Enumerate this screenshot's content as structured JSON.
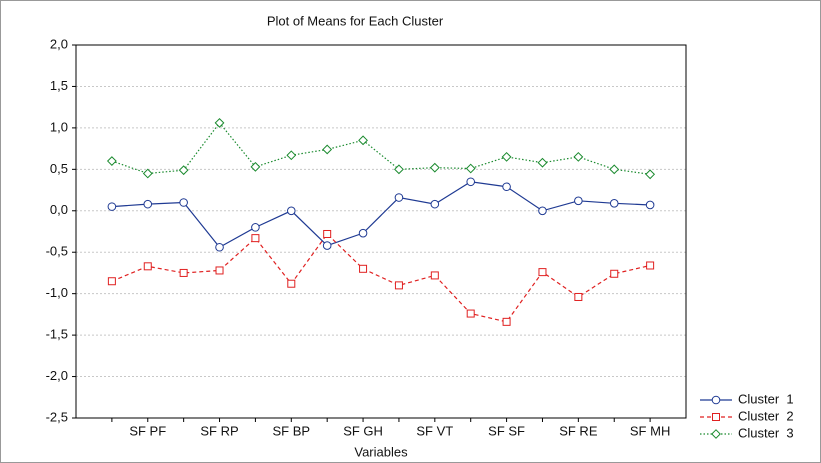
{
  "chart_data": {
    "type": "line",
    "title": "Plot of Means for Each Cluster",
    "x_label": "Variables",
    "categories": [
      null,
      "SF PF",
      null,
      "SF RP",
      null,
      "SF BP",
      null,
      "SF GH",
      null,
      "SF VT",
      null,
      "SF SF",
      null,
      "SF RE",
      null,
      "SF MH"
    ],
    "series": [
      {
        "name": "Cluster  1",
        "color": "#1f3a93",
        "dash": "solid",
        "marker": "circle",
        "values": [
          0.05,
          0.08,
          0.1,
          -0.44,
          -0.2,
          0.0,
          -0.42,
          -0.27,
          0.16,
          0.08,
          0.35,
          0.29,
          0.0,
          0.12,
          0.09,
          0.07
        ]
      },
      {
        "name": "Cluster  2",
        "color": "#e02020",
        "dash": "dashed",
        "marker": "square",
        "values": [
          -0.85,
          -0.67,
          -0.75,
          -0.72,
          -0.33,
          -0.88,
          -0.28,
          -0.7,
          -0.9,
          -0.78,
          -1.24,
          -1.34,
          -0.74,
          -1.04,
          -0.76,
          -0.66
        ]
      },
      {
        "name": "Cluster  3",
        "color": "#1a8a2e",
        "dash": "dotted",
        "marker": "diamond",
        "values": [
          0.6,
          0.45,
          0.49,
          1.06,
          0.53,
          0.67,
          0.74,
          0.85,
          0.5,
          0.52,
          0.51,
          0.65,
          0.58,
          0.65,
          0.5,
          0.44
        ]
      }
    ],
    "ylim": [
      -2.5,
      2.0
    ],
    "yticks": [
      {
        "value": -2.5,
        "label": "-2,5"
      },
      {
        "value": -2.0,
        "label": "-2,0"
      },
      {
        "value": -1.5,
        "label": "-1,5"
      },
      {
        "value": -1.0,
        "label": "-1,0"
      },
      {
        "value": -0.5,
        "label": "-0,5"
      },
      {
        "value": 0.0,
        "label": "0,0"
      },
      {
        "value": 0.5,
        "label": "0,5"
      },
      {
        "value": 1.0,
        "label": "1,0"
      },
      {
        "value": 1.5,
        "label": "1,5"
      },
      {
        "value": 2.0,
        "label": "2,0"
      }
    ],
    "grid": true,
    "legend": "bottom-right"
  }
}
